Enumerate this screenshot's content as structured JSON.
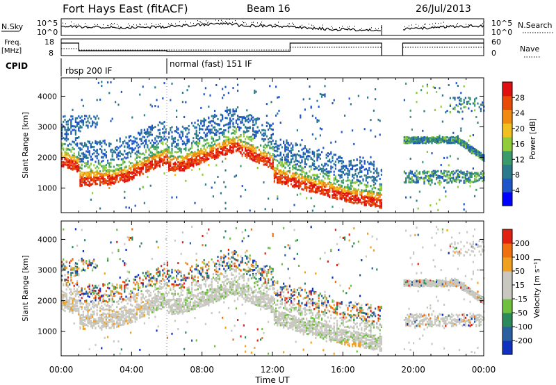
{
  "header": {
    "station": "Fort Hays East (fitACF)",
    "beam": "Beam 16",
    "date": "26/Jul/2013"
  },
  "top_panels": {
    "nsky": {
      "label": "N.Sky",
      "right_label": "N.Search",
      "tick_top": "10^5",
      "tick_bottom": "10^0",
      "right_tick_top": "10^5",
      "right_tick_bottom": "10^0"
    },
    "freq": {
      "label_line1": "Freq.",
      "label_line2": "[MHz]",
      "right_label": "Nave",
      "left_ticks": [
        "18",
        "8"
      ],
      "right_ticks": [
        "60",
        "0"
      ]
    },
    "cpid": {
      "label": "CPID",
      "modes": [
        {
          "text": "rbsp 200 IF",
          "start_h": 0
        },
        {
          "text": "normal (fast) 151 IF",
          "start_h": 6
        }
      ]
    }
  },
  "chart_data": [
    {
      "type": "heatmap",
      "name": "power",
      "ylabel": "Slant Range [km]",
      "xlabel": "Time UT",
      "xlim": [
        0,
        24
      ],
      "ylim": [
        200,
        4600
      ],
      "yticks": [
        1000,
        2000,
        3000,
        4000
      ],
      "xticks": [
        "00:00",
        "04:00",
        "08:00",
        "12:00",
        "16:00",
        "20:00",
        "00:00"
      ],
      "data_gap_hours": [
        18.2,
        19.4
      ],
      "colorbar": {
        "label": "Power [dB]",
        "ticks": [
          "28",
          "24",
          "20",
          "16",
          "12",
          "8",
          "4"
        ],
        "colors": [
          "#0000ff",
          "#1f55c8",
          "#2a7a8c",
          "#3a9a6a",
          "#8fcb3a",
          "#f0c020",
          "#f08a10",
          "#e84a08",
          "#e01010"
        ]
      }
    },
    {
      "type": "heatmap",
      "name": "velocity",
      "ylabel": "Slant Range [km]",
      "xlabel": "Time UT",
      "xlim": [
        0,
        24
      ],
      "ylim": [
        200,
        4600
      ],
      "yticks": [
        1000,
        2000,
        3000,
        4000
      ],
      "xticks": [
        "00:00",
        "04:00",
        "08:00",
        "12:00",
        "16:00",
        "20:00",
        "00:00"
      ],
      "data_gap_hours": [
        18.2,
        19.4
      ],
      "colorbar": {
        "label": "Velocity [m s⁻¹]",
        "ticks": [
          "200",
          "100",
          "50",
          "15",
          "-15",
          "-50",
          "-100",
          "-200"
        ],
        "colors": [
          "#1030c0",
          "#2a60a0",
          "#2a8a5a",
          "#70c040",
          "#c8c8c0",
          "#c8c8c0",
          "#f0a020",
          "#f07010",
          "#e02010"
        ]
      }
    }
  ]
}
